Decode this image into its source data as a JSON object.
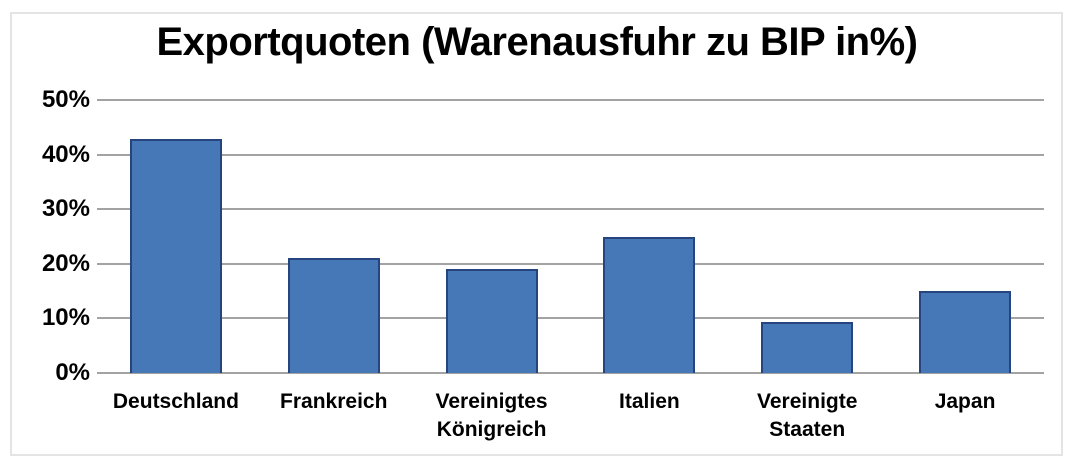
{
  "chart_data": {
    "type": "bar",
    "title": "Exportquoten (Warenausfuhr zu BIP in%)",
    "categories": [
      "Deutschland",
      "Frankreich",
      "Vereinigtes Königreich",
      "Italien",
      "Vereinigte Staaten",
      "Japan"
    ],
    "values": [
      42.8,
      21,
      19,
      25,
      9.3,
      15
    ],
    "xlabel": "",
    "ylabel": "",
    "ylim": [
      0,
      50
    ],
    "ytick_step": 10,
    "ytick_labels": [
      "0%",
      "10%",
      "20%",
      "30%",
      "40%",
      "50%"
    ],
    "grid": true,
    "legend": false,
    "colors": {
      "bar_fill": "#4678b8",
      "bar_border": "#26457e",
      "gridline": "#a3a3a3",
      "frame_border": "#e4e4e4",
      "text": "#000000",
      "background": "#ffffff"
    }
  }
}
